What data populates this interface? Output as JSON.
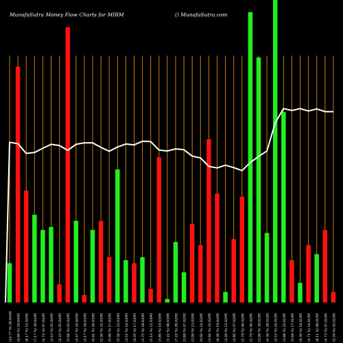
{
  "header": {
    "left": "MunafaSutra  Money Flow  Charts for MIRM",
    "right": "() MunafaSutra.com"
  },
  "colors": {
    "background": "#000000",
    "up": "#22ee22",
    "down": "#ff1111",
    "grid": "#c87f0a",
    "line": "#ffffff"
  },
  "chart_data": {
    "type": "bar",
    "title": "",
    "xlabel": "",
    "ylabel": "",
    "ylim": [
      0,
      100
    ],
    "grid": "vertical",
    "bars": [
      {
        "value": 13,
        "dir": "up"
      },
      {
        "value": 78,
        "dir": "down"
      },
      {
        "value": 37,
        "dir": "down"
      },
      {
        "value": 29,
        "dir": "up"
      },
      {
        "value": 24,
        "dir": "up"
      },
      {
        "value": 25,
        "dir": "up"
      },
      {
        "value": 6,
        "dir": "down"
      },
      {
        "value": 91,
        "dir": "down"
      },
      {
        "value": 27,
        "dir": "up"
      },
      {
        "value": 2.5,
        "dir": "down"
      },
      {
        "value": 24,
        "dir": "up"
      },
      {
        "value": 27,
        "dir": "down"
      },
      {
        "value": 15,
        "dir": "down"
      },
      {
        "value": 44,
        "dir": "up"
      },
      {
        "value": 14,
        "dir": "up"
      },
      {
        "value": 13,
        "dir": "down"
      },
      {
        "value": 15,
        "dir": "up"
      },
      {
        "value": 4.5,
        "dir": "down"
      },
      {
        "value": 48,
        "dir": "down"
      },
      {
        "value": 1.2,
        "dir": "up"
      },
      {
        "value": 20,
        "dir": "up"
      },
      {
        "value": 10,
        "dir": "up"
      },
      {
        "value": 26,
        "dir": "down"
      },
      {
        "value": 19,
        "dir": "down"
      },
      {
        "value": 54,
        "dir": "down"
      },
      {
        "value": 36,
        "dir": "down"
      },
      {
        "value": 3.5,
        "dir": "up"
      },
      {
        "value": 21,
        "dir": "down"
      },
      {
        "value": 35,
        "dir": "down"
      },
      {
        "value": 96,
        "dir": "up"
      },
      {
        "value": 81,
        "dir": "up"
      },
      {
        "value": 23,
        "dir": "up"
      },
      {
        "value": 100,
        "dir": "up"
      },
      {
        "value": 63,
        "dir": "up"
      },
      {
        "value": 14,
        "dir": "down"
      },
      {
        "value": 6.5,
        "dir": "up"
      },
      {
        "value": 19,
        "dir": "down"
      },
      {
        "value": 16,
        "dir": "up"
      },
      {
        "value": 24,
        "dir": "down"
      },
      {
        "value": 3.5,
        "dir": "down"
      }
    ],
    "line": [
      53,
      52.5,
      49.3,
      49.6,
      51,
      52.3,
      51.9,
      50.3,
      52.3,
      52.8,
      52.8,
      51.3,
      50,
      51.4,
      52.4,
      52.1,
      53.3,
      53.2,
      50.4,
      50.1,
      50.8,
      50.5,
      48.4,
      47.8,
      45,
      44.5,
      45.4,
      44.6,
      43.6,
      46.3,
      48.3,
      50.1,
      59.4,
      64.1,
      63.5,
      64.1,
      63.3,
      64,
      63.1,
      63.1
    ],
    "x_tick_labels": [
      "(12.77 %) 28.04/95",
      "(9.88 %) 29.04/95",
      "(8.17 %) 12.04/95",
      "(7.17 %) 30.04/95",
      "(4.72 %) 07.04/95",
      "(3.43 %) 01.04/95",
      "(2.33 %) 05.04/95",
      "(5.68 %) 03.04/95",
      "(2.47 %) 20.04/95",
      "(3.17 %) 29.03/95",
      "(0.91 %) 26.03/95",
      "(2.58 %) 21.03/95",
      "(5.68 %) 17.03/95",
      "(5.58 %) 23.03/95",
      "(3.51 %) 14.03/95",
      "(0.35 %) 17.03/95",
      "(1.75 %) 18.03/95",
      "(5.14 %) 11.03/95",
      "(3.86 %) 10.03/95",
      "(1.22 %) 08.03/95",
      "(7.22 %) 28.02/95",
      "(3.89 %) 07.02/95",
      "(2.09 %) 13.02/95",
      "(0.60 %) 14.02/95",
      "(2.94 %) 21.02/95",
      "(6.38 %) 19.02/95",
      "(3.26 %) 12.02/95",
      "(4.86 %) 07.02/95",
      "(2.79 %) 06.02/95",
      "(2.79 %) 04.02/95",
      "(3.98 %) 30.01/95",
      "(4.36 %) 28.01/95",
      "(2.52 %) 24.01/95",
      "(3.88 %) 22.01/95",
      "(5.69 %) 17.01/95",
      "(6.39 %) 16.01/95",
      "(4.71 %) 14.01/95",
      "(8.11 %) 08.01/95",
      "(4.73 %) 07.01/95",
      "(2.59 %) 03.01/95"
    ]
  }
}
